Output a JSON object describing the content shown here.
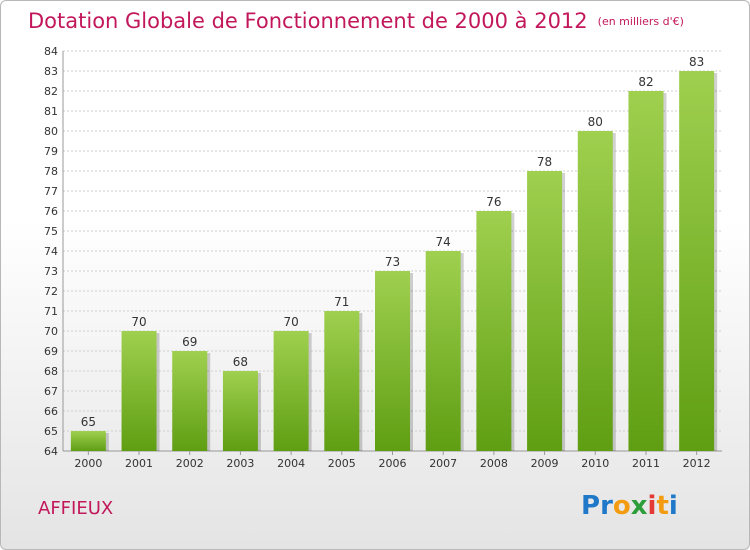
{
  "header": {
    "title": "Dotation Globale de Fonctionnement de 2000 à 2012",
    "unit": "(en milliers d'€)"
  },
  "footer": {
    "place": "AFFIEUX",
    "logo": "Proxiti"
  },
  "colors": {
    "title": "#c2185b",
    "bar_top": "#9fd04f",
    "bar_bottom": "#5f9e13",
    "logo_letters": [
      "#1f78c8",
      "#1f78c8",
      "#f39c12",
      "#2e9e3a",
      "#e53935",
      "#f39c12",
      "#1f78c8"
    ]
  },
  "chart_data": {
    "type": "bar",
    "categories": [
      "2000",
      "2001",
      "2002",
      "2003",
      "2004",
      "2005",
      "2006",
      "2007",
      "2008",
      "2009",
      "2010",
      "2011",
      "2012"
    ],
    "values": [
      65,
      70,
      69,
      68,
      70,
      71,
      73,
      74,
      76,
      78,
      80,
      82,
      83
    ],
    "ylim": [
      64,
      84
    ],
    "yticks": [
      64,
      65,
      66,
      67,
      68,
      69,
      70,
      71,
      72,
      73,
      74,
      75,
      76,
      77,
      78,
      79,
      80,
      81,
      82,
      83,
      84
    ],
    "title": "Dotation Globale de Fonctionnement de 2000 à 2012",
    "xlabel": "",
    "ylabel": "",
    "grid": true,
    "data_labels": true
  }
}
